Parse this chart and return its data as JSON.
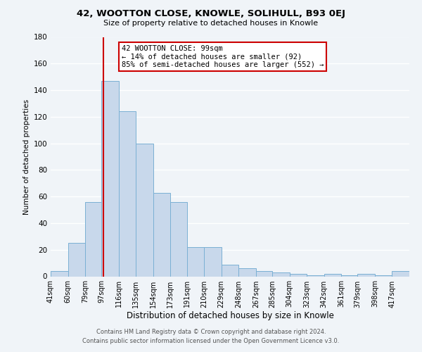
{
  "title": "42, WOOTTON CLOSE, KNOWLE, SOLIHULL, B93 0EJ",
  "subtitle": "Size of property relative to detached houses in Knowle",
  "xlabel": "Distribution of detached houses by size in Knowle",
  "ylabel": "Number of detached properties",
  "bar_labels": [
    "41sqm",
    "60sqm",
    "79sqm",
    "97sqm",
    "116sqm",
    "135sqm",
    "154sqm",
    "173sqm",
    "191sqm",
    "210sqm",
    "229sqm",
    "248sqm",
    "267sqm",
    "285sqm",
    "304sqm",
    "323sqm",
    "342sqm",
    "361sqm",
    "379sqm",
    "398sqm",
    "417sqm"
  ],
  "bar_values": [
    4,
    25,
    56,
    147,
    124,
    100,
    63,
    56,
    22,
    22,
    9,
    6,
    4,
    3,
    2,
    1,
    2,
    1,
    2,
    1,
    4
  ],
  "bar_edges": [
    41,
    60,
    79,
    97,
    116,
    135,
    154,
    173,
    191,
    210,
    229,
    248,
    267,
    285,
    304,
    323,
    342,
    361,
    379,
    398,
    417,
    436
  ],
  "bar_color": "#c8d8eb",
  "bar_edgecolor": "#7ab0d4",
  "vline_color": "#cc0000",
  "vline_x": 99,
  "annotation_title": "42 WOOTTON CLOSE: 99sqm",
  "annotation_line1": "← 14% of detached houses are smaller (92)",
  "annotation_line2": "85% of semi-detached houses are larger (552) →",
  "annotation_box_facecolor": "#ffffff",
  "annotation_box_edgecolor": "#cc0000",
  "ylim": [
    0,
    180
  ],
  "yticks": [
    0,
    20,
    40,
    60,
    80,
    100,
    120,
    140,
    160,
    180
  ],
  "footer_line1": "Contains HM Land Registry data © Crown copyright and database right 2024.",
  "footer_line2": "Contains public sector information licensed under the Open Government Licence v3.0.",
  "background_color": "#f0f4f8",
  "grid_color": "#ffffff",
  "title_fontsize": 9.5,
  "subtitle_fontsize": 8,
  "ylabel_fontsize": 7.5,
  "xlabel_fontsize": 8.5,
  "tick_fontsize": 7,
  "footer_fontsize": 6,
  "ann_fontsize": 7.5
}
